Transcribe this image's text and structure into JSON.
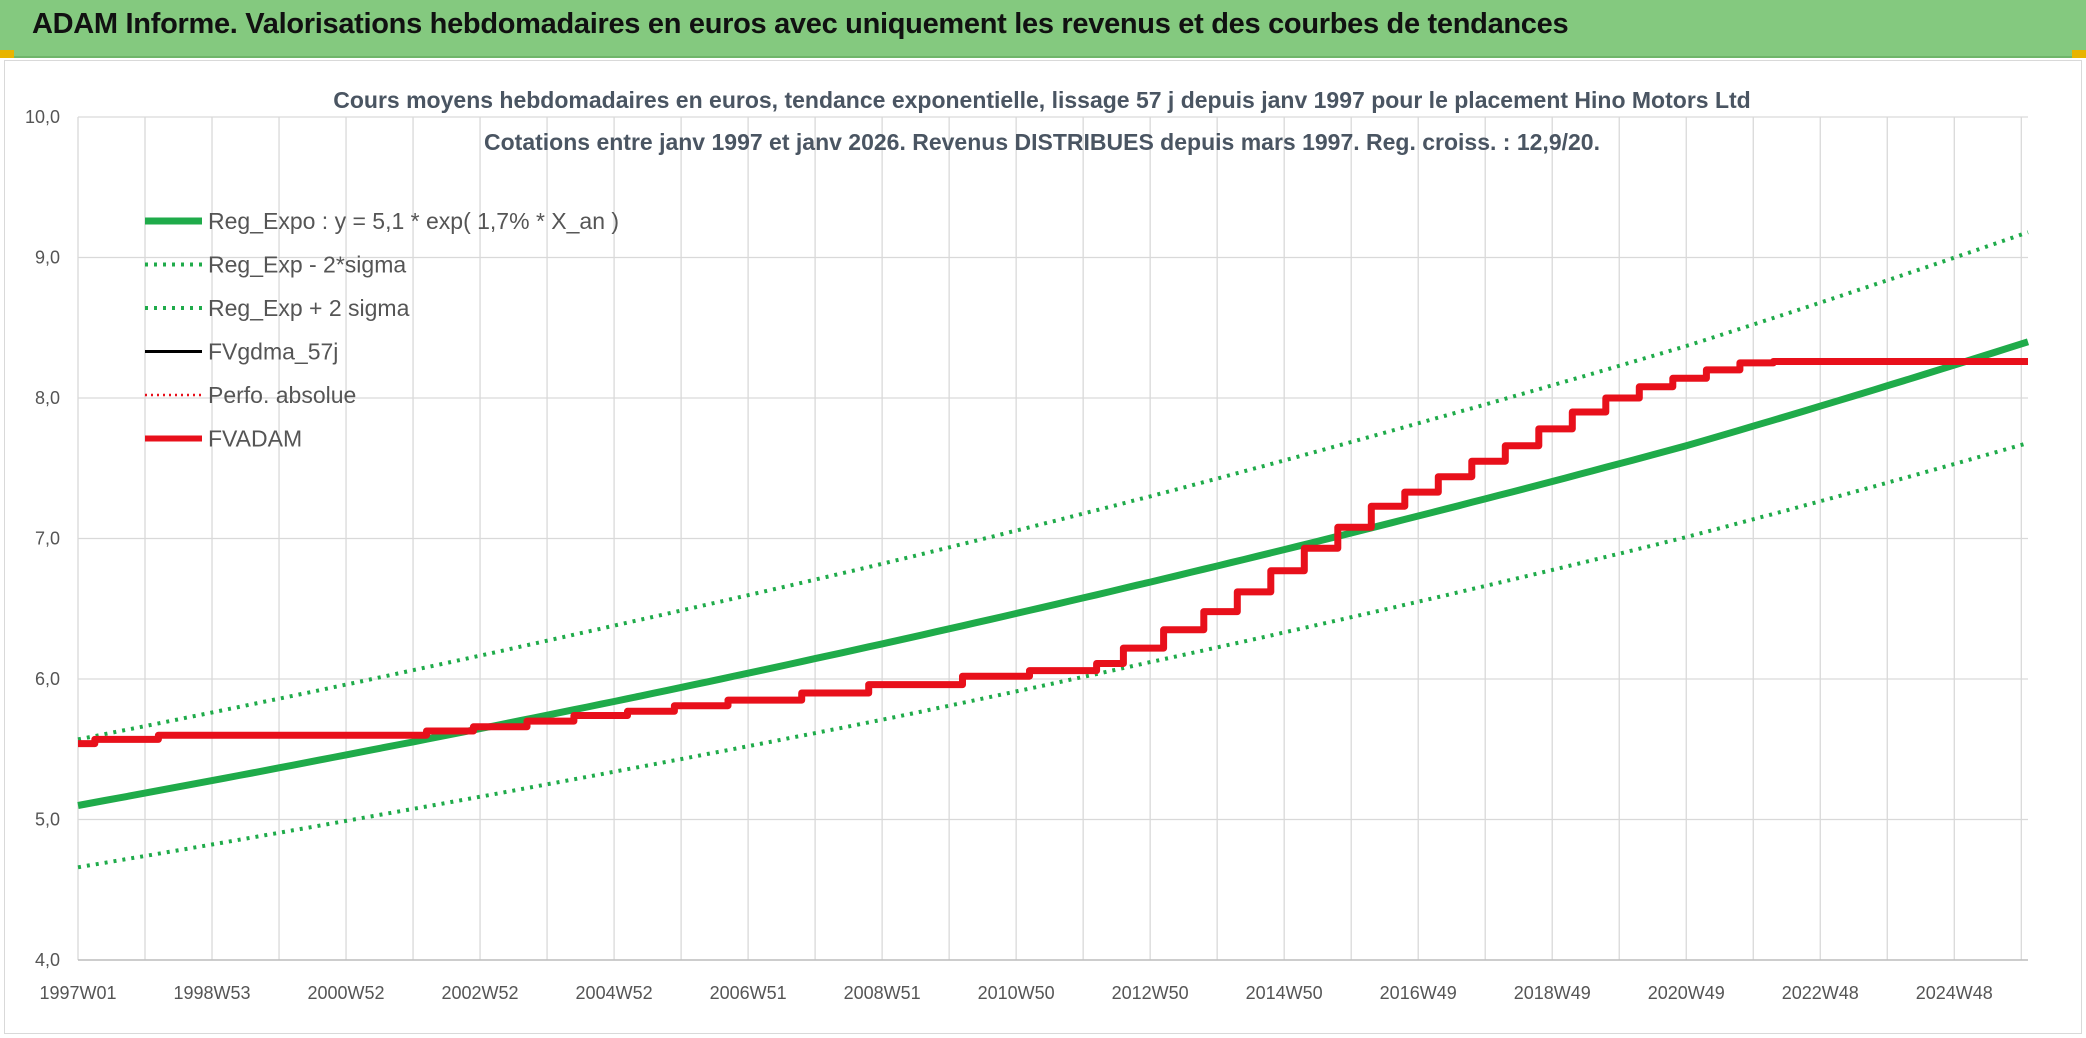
{
  "banner": {
    "title": "ADAM Informe. Valorisations hebdomadaires en euros avec uniquement les revenus et des courbes de tendances"
  },
  "colors": {
    "banner_bg": "#84c97f",
    "regression": "#1fab4a",
    "fvadam": "#e8101b",
    "fvgdma": "#000000",
    "grid": "#d9d9d9"
  },
  "chart_data": {
    "type": "line",
    "title": "Cours moyens hebdomadaires en euros, tendance exponentielle, lissage 57 j depuis janv 1997 pour le placement Hino Motors Ltd",
    "subtitle": "Cotations entre janv 1997 et janv 2026. Revenus DISTRIBUES depuis mars 1997. Reg. croiss. : 12,9/20.",
    "xlabel": "",
    "ylabel": "",
    "ylim": [
      4.0,
      10.0
    ],
    "xlim": [
      1997.0,
      2026.1
    ],
    "y_ticks": [
      "4,0",
      "5,0",
      "6,0",
      "7,0",
      "8,0",
      "9,0",
      "10,0"
    ],
    "y_tick_values": [
      4.0,
      5.0,
      6.0,
      7.0,
      8.0,
      9.0,
      10.0
    ],
    "x_ticks": [
      "1997W01",
      "1998W53",
      "2000W52",
      "2002W52",
      "2004W52",
      "2006W51",
      "2008W51",
      "2010W50",
      "2012W50",
      "2014W50",
      "2016W49",
      "2018W49",
      "2020W49",
      "2022W48",
      "2024W48"
    ],
    "x_tick_values": [
      1997.0,
      1999.0,
      2001.0,
      2003.0,
      2005.0,
      2007.0,
      2009.0,
      2011.0,
      2013.0,
      2015.0,
      2017.0,
      2019.0,
      2021.0,
      2023.0,
      2025.0
    ],
    "grid": true,
    "legend_position": "top-left",
    "legend": [
      {
        "label": "Reg_Expo : y = 5,1 * exp( 1,7% *  X_an )",
        "style": "solid-thick",
        "color": "#1fab4a"
      },
      {
        "label": "Reg_Exp - 2*sigma",
        "style": "dotted",
        "color": "#1fab4a"
      },
      {
        "label": "Reg_Exp + 2 sigma",
        "style": "dotted",
        "color": "#1fab4a"
      },
      {
        "label": "FVgdma_57j",
        "style": "solid",
        "color": "#000000"
      },
      {
        "label": "Perfo. absolue",
        "style": "dotted",
        "color": "#e8101b"
      },
      {
        "label": "FVADAM",
        "style": "solid-thick",
        "color": "#e8101b"
      }
    ],
    "series": [
      {
        "name": "Reg_Expo : y = 5,1 * exp( 1,7% *  X_an )",
        "x": [
          1997.0,
          2001.0,
          2005.0,
          2009.0,
          2013.0,
          2017.0,
          2021.0,
          2026.1
        ],
        "values": [
          5.1,
          5.46,
          5.84,
          6.25,
          6.69,
          7.16,
          7.66,
          8.4
        ]
      },
      {
        "name": "Reg_Exp - 2*sigma",
        "x": [
          1997.0,
          2001.0,
          2005.0,
          2009.0,
          2013.0,
          2017.0,
          2021.0,
          2026.1
        ],
        "values": [
          4.66,
          4.99,
          5.34,
          5.71,
          6.12,
          6.55,
          7.01,
          7.68
        ]
      },
      {
        "name": "Reg_Exp + 2 sigma",
        "x": [
          1997.0,
          2001.0,
          2005.0,
          2009.0,
          2013.0,
          2017.0,
          2021.0,
          2026.1
        ],
        "values": [
          5.57,
          5.96,
          6.38,
          6.82,
          7.3,
          7.82,
          8.37,
          9.18
        ]
      },
      {
        "name": "FVADAM",
        "step": true,
        "x": [
          1997.0,
          1997.25,
          1998.2,
          2002.2,
          2002.9,
          2003.7,
          2004.4,
          2005.2,
          2005.9,
          2006.7,
          2007.8,
          2008.8,
          2010.2,
          2011.2,
          2012.2,
          2012.6,
          2013.2,
          2013.8,
          2014.3,
          2014.8,
          2015.3,
          2015.8,
          2016.3,
          2016.8,
          2017.3,
          2017.8,
          2018.3,
          2018.8,
          2019.3,
          2019.8,
          2020.3,
          2020.8,
          2021.3,
          2021.8,
          2022.3,
          2026.1
        ],
        "values": [
          5.54,
          5.57,
          5.6,
          5.63,
          5.66,
          5.7,
          5.74,
          5.77,
          5.81,
          5.85,
          5.9,
          5.96,
          6.02,
          6.06,
          6.11,
          6.22,
          6.35,
          6.48,
          6.62,
          6.77,
          6.93,
          7.08,
          7.23,
          7.33,
          7.44,
          7.55,
          7.66,
          7.78,
          7.9,
          8.0,
          8.08,
          8.14,
          8.2,
          8.25,
          8.26,
          8.26
        ]
      }
    ]
  }
}
